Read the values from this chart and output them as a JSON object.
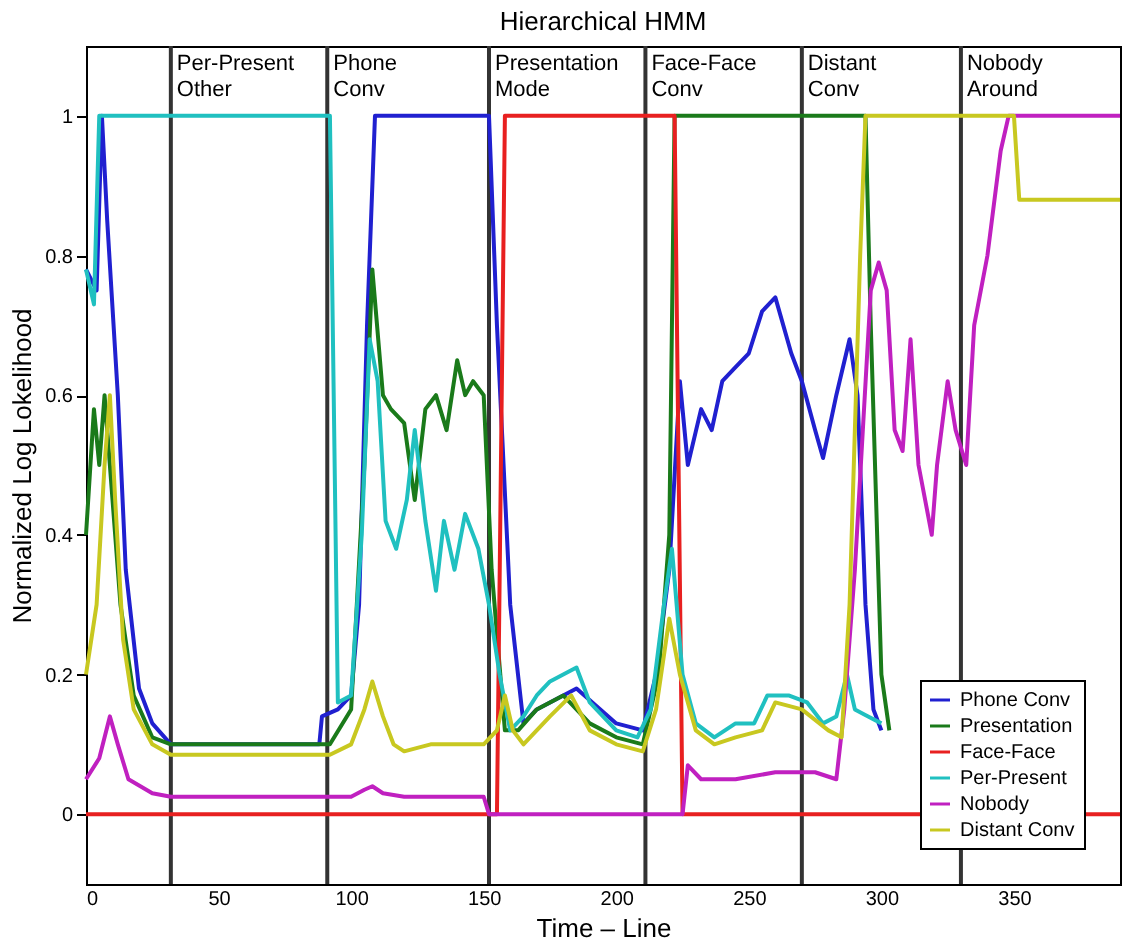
{
  "chart_data": {
    "type": "line",
    "title": "Hierarchical HMM",
    "xlabel": "Time – Line",
    "ylabel": "Normalized Log Lokelihood",
    "xlim": [
      0,
      390
    ],
    "ylim": [
      -0.1,
      1.1
    ],
    "xticks": [
      0,
      50,
      100,
      150,
      200,
      250,
      300,
      350
    ],
    "yticks": [
      0,
      0.2,
      0.4,
      0.6,
      0.8,
      1
    ],
    "grid": false,
    "legend": "bottom right",
    "line_style": "solid",
    "marker": "none",
    "ref_lines": [
      {
        "axis": "x",
        "value": 32,
        "label": "Per-Present Other",
        "color": "#333333"
      },
      {
        "axis": "x",
        "value": 91,
        "label": "Phone Conv",
        "color": "#333333"
      },
      {
        "axis": "x",
        "value": 152,
        "label": "Presentation Mode",
        "color": "#333333"
      },
      {
        "axis": "x",
        "value": 211,
        "label": "Face-Face Conv",
        "color": "#333333"
      },
      {
        "axis": "x",
        "value": 270,
        "label": "Distant Conv",
        "color": "#333333"
      },
      {
        "axis": "x",
        "value": 330,
        "label": "Nobody Around",
        "color": "#333333"
      }
    ],
    "series": [
      {
        "name": "Phone Conv",
        "color": "#2020d0",
        "x": [
          0,
          4,
          6,
          8,
          12,
          15,
          20,
          25,
          32,
          88,
          89,
          95,
          100,
          103,
          106,
          109,
          152,
          155,
          160,
          165,
          170,
          185,
          200,
          210,
          215,
          220,
          224,
          227,
          232,
          236,
          240,
          245,
          250,
          255,
          260,
          266,
          270,
          275,
          278,
          283,
          288,
          291,
          294,
          297,
          300
        ],
        "values": [
          0.78,
          0.75,
          1.0,
          0.85,
          0.6,
          0.35,
          0.18,
          0.13,
          0.1,
          0.1,
          0.14,
          0.15,
          0.17,
          0.3,
          0.7,
          1.0,
          1.0,
          0.7,
          0.3,
          0.13,
          0.15,
          0.18,
          0.13,
          0.12,
          0.2,
          0.35,
          0.62,
          0.5,
          0.58,
          0.55,
          0.62,
          0.64,
          0.66,
          0.72,
          0.74,
          0.66,
          0.62,
          0.55,
          0.51,
          0.6,
          0.68,
          0.6,
          0.3,
          0.15,
          0.12
        ]
      },
      {
        "name": "Presentation",
        "color": "#1a7a1a",
        "x": [
          0,
          3,
          5,
          7,
          10,
          13,
          18,
          25,
          32,
          92,
          100,
          105,
          108,
          112,
          115,
          120,
          124,
          128,
          132,
          136,
          140,
          143,
          146,
          150,
          153,
          158,
          163,
          170,
          180,
          190,
          200,
          210,
          216,
          220,
          222,
          294,
          296,
          300,
          303
        ],
        "values": [
          0.4,
          0.58,
          0.5,
          0.6,
          0.45,
          0.3,
          0.17,
          0.11,
          0.1,
          0.1,
          0.15,
          0.5,
          0.78,
          0.6,
          0.58,
          0.56,
          0.45,
          0.58,
          0.6,
          0.55,
          0.65,
          0.6,
          0.62,
          0.6,
          0.35,
          0.12,
          0.12,
          0.15,
          0.17,
          0.13,
          0.11,
          0.1,
          0.2,
          0.4,
          1.0,
          1.0,
          0.7,
          0.2,
          0.12
        ]
      },
      {
        "name": "Face-Face",
        "color": "#e82020",
        "x": [
          0,
          155,
          158,
          222,
          225,
          390
        ],
        "values": [
          0,
          0,
          1,
          1,
          0,
          0
        ]
      },
      {
        "name": "Per-Present",
        "color": "#20c0c0",
        "x": [
          0,
          3,
          5,
          92,
          95,
          100,
          104,
          107,
          110,
          113,
          117,
          121,
          124,
          128,
          132,
          135,
          139,
          143,
          148,
          152,
          156,
          160,
          165,
          170,
          175,
          180,
          185,
          190,
          200,
          208,
          213,
          218,
          221,
          225,
          230,
          237,
          245,
          252,
          257,
          265,
          272,
          278,
          283,
          287,
          290,
          295,
          300
        ],
        "values": [
          0.78,
          0.73,
          1.0,
          1.0,
          0.16,
          0.17,
          0.4,
          0.68,
          0.62,
          0.42,
          0.38,
          0.45,
          0.55,
          0.42,
          0.32,
          0.42,
          0.35,
          0.43,
          0.38,
          0.3,
          0.2,
          0.12,
          0.14,
          0.17,
          0.19,
          0.2,
          0.21,
          0.16,
          0.12,
          0.11,
          0.15,
          0.3,
          0.38,
          0.2,
          0.13,
          0.11,
          0.13,
          0.13,
          0.17,
          0.17,
          0.16,
          0.13,
          0.14,
          0.2,
          0.15,
          0.14,
          0.13
        ]
      },
      {
        "name": "Nobody",
        "color": "#c020c0",
        "x": [
          0,
          5,
          9,
          12,
          16,
          25,
          32,
          100,
          105,
          108,
          112,
          120,
          150,
          152,
          225,
          227,
          232,
          245,
          260,
          275,
          283,
          286,
          290,
          293,
          296,
          299,
          302,
          305,
          308,
          311,
          314,
          319,
          321,
          325,
          328,
          332,
          335,
          340,
          345,
          348,
          390
        ],
        "values": [
          0.05,
          0.08,
          0.14,
          0.1,
          0.05,
          0.03,
          0.025,
          0.025,
          0.035,
          0.04,
          0.03,
          0.025,
          0.025,
          0,
          0,
          0.07,
          0.05,
          0.05,
          0.06,
          0.06,
          0.05,
          0.15,
          0.35,
          0.55,
          0.75,
          0.79,
          0.75,
          0.55,
          0.52,
          0.68,
          0.5,
          0.4,
          0.5,
          0.62,
          0.55,
          0.5,
          0.7,
          0.8,
          0.95,
          1.0,
          1.0
        ]
      },
      {
        "name": "Distant Conv",
        "color": "#c8c820",
        "x": [
          0,
          4,
          7,
          9,
          11,
          14,
          18,
          25,
          32,
          92,
          100,
          105,
          108,
          112,
          116,
          120,
          130,
          150,
          155,
          158,
          161,
          165,
          175,
          183,
          190,
          200,
          210,
          215,
          220,
          224,
          230,
          237,
          245,
          255,
          260,
          270,
          280,
          285,
          288,
          292,
          294,
          350,
          352,
          390
        ],
        "values": [
          0.2,
          0.3,
          0.5,
          0.6,
          0.45,
          0.25,
          0.15,
          0.1,
          0.085,
          0.085,
          0.1,
          0.15,
          0.19,
          0.14,
          0.1,
          0.09,
          0.1,
          0.1,
          0.12,
          0.17,
          0.12,
          0.1,
          0.14,
          0.17,
          0.12,
          0.1,
          0.09,
          0.15,
          0.28,
          0.2,
          0.12,
          0.1,
          0.11,
          0.12,
          0.16,
          0.15,
          0.12,
          0.11,
          0.3,
          0.8,
          1.0,
          1.0,
          0.88,
          0.88
        ]
      }
    ]
  }
}
